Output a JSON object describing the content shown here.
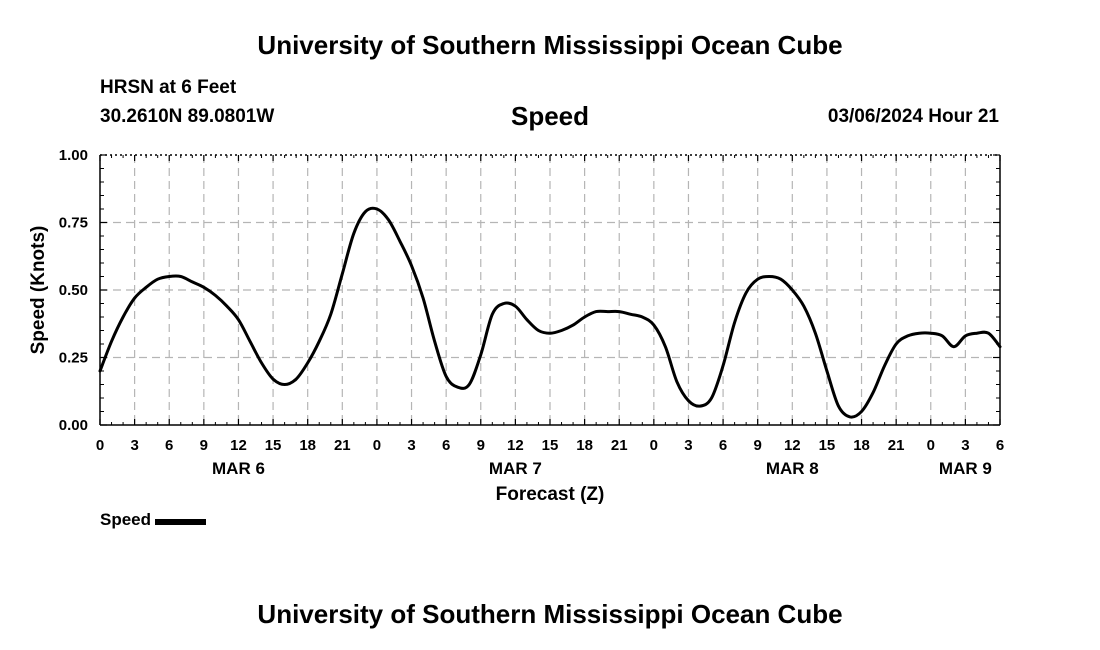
{
  "header": {
    "title": "University of Southern Mississippi Ocean Cube",
    "station": "HRSN at 6 Feet",
    "coordinates": "30.2610N  89.0801W",
    "panel_title": "Speed",
    "datetime": "03/06/2024 Hour 21"
  },
  "footer": {
    "title": "University of Southern Mississippi Ocean Cube"
  },
  "legend": {
    "label": "Speed",
    "color": "#000000"
  },
  "chart_data": {
    "type": "line",
    "title": "Speed",
    "xlabel": "Forecast (Z)",
    "ylabel": "Speed (Knots)",
    "ylim": [
      0,
      1
    ],
    "yticks": [
      "0.00",
      "0.25",
      "0.50",
      "0.75",
      "1.00"
    ],
    "xticks": [
      "0",
      "3",
      "6",
      "9",
      "12",
      "15",
      "18",
      "21",
      "0",
      "3",
      "6",
      "9",
      "12",
      "15",
      "18",
      "21",
      "0",
      "3",
      "6",
      "9",
      "12",
      "15",
      "18",
      "21",
      "0",
      "3",
      "6"
    ],
    "date_labels": [
      {
        "label": "MAR 6",
        "hour": 12
      },
      {
        "label": "MAR 7",
        "hour": 36
      },
      {
        "label": "MAR 8",
        "hour": 60
      },
      {
        "label": "MAR 9",
        "hour": 75
      }
    ],
    "grid": true,
    "series": [
      {
        "name": "Speed",
        "hours": [
          0,
          1,
          2,
          3,
          4,
          5,
          6,
          7,
          8,
          9,
          10,
          11,
          12,
          13,
          14,
          15,
          16,
          17,
          18,
          19,
          20,
          21,
          22,
          23,
          24,
          25,
          26,
          27,
          28,
          29,
          30,
          31,
          32,
          33,
          34,
          35,
          36,
          37,
          38,
          39,
          40,
          41,
          42,
          43,
          44,
          45,
          46,
          47,
          48,
          49,
          50,
          51,
          52,
          53,
          54,
          55,
          56,
          57,
          58,
          59,
          60,
          61,
          62,
          63,
          64,
          65,
          66,
          67,
          68,
          69,
          70,
          71,
          72,
          73,
          74,
          75,
          76,
          77,
          78
        ],
        "values": [
          0.2,
          0.31,
          0.4,
          0.47,
          0.51,
          0.54,
          0.55,
          0.55,
          0.53,
          0.51,
          0.48,
          0.44,
          0.39,
          0.31,
          0.23,
          0.17,
          0.15,
          0.17,
          0.23,
          0.31,
          0.41,
          0.56,
          0.71,
          0.79,
          0.8,
          0.76,
          0.68,
          0.59,
          0.47,
          0.31,
          0.18,
          0.14,
          0.15,
          0.26,
          0.41,
          0.45,
          0.44,
          0.39,
          0.35,
          0.34,
          0.35,
          0.37,
          0.4,
          0.42,
          0.42,
          0.42,
          0.41,
          0.4,
          0.37,
          0.29,
          0.16,
          0.09,
          0.07,
          0.1,
          0.22,
          0.38,
          0.49,
          0.54,
          0.55,
          0.54,
          0.5,
          0.44,
          0.34,
          0.2,
          0.07,
          0.03,
          0.05,
          0.12,
          0.22,
          0.3,
          0.33,
          0.34,
          0.34,
          0.33,
          0.29,
          0.33,
          0.34,
          0.34,
          0.29
        ]
      }
    ]
  }
}
